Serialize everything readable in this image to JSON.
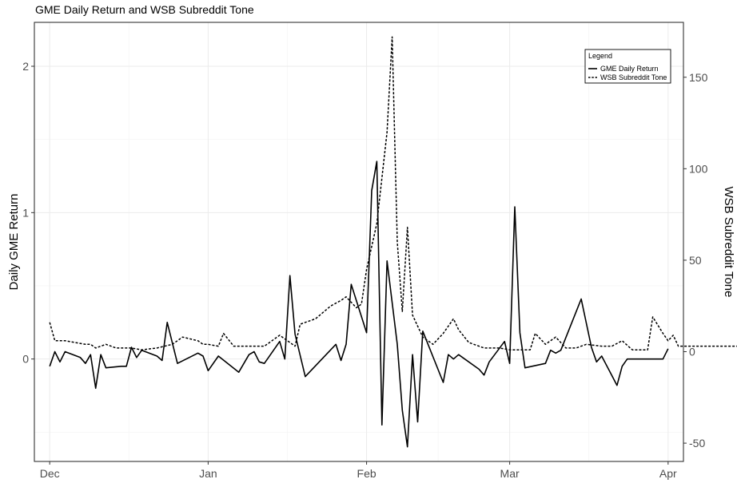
{
  "chart_data": {
    "type": "line",
    "title": "GME Daily Return and WSB Subreddit Tone",
    "xlabel": "",
    "ylabel": "Daily GME Return",
    "y2label": "WSB Subreddit Tone",
    "x_date_range": [
      "2020-11-28",
      "2021-04-04"
    ],
    "x_ticks": [
      {
        "date": "2020-12-01",
        "label": "Dec"
      },
      {
        "date": "2021-01-01",
        "label": "Jan"
      },
      {
        "date": "2021-02-01",
        "label": "Feb"
      },
      {
        "date": "2021-03-01",
        "label": "Mar"
      },
      {
        "date": "2021-04-01",
        "label": "Apr"
      }
    ],
    "ylim": [
      -0.7,
      2.3
    ],
    "y_ticks": [
      0,
      1,
      2
    ],
    "y2lim": [
      -60,
      180
    ],
    "y2_ticks": [
      -50,
      0,
      50,
      100,
      150
    ],
    "grid": true,
    "legend": {
      "title": "Legend",
      "position": "top-right"
    },
    "series": [
      {
        "name": "GME Daily Return",
        "axis": "left",
        "line_style": "solid",
        "color": "#000000",
        "points": [
          [
            "2020-12-01",
            -0.05
          ],
          [
            "2020-12-02",
            0.05
          ],
          [
            "2020-12-03",
            -0.02
          ],
          [
            "2020-12-04",
            0.05
          ],
          [
            "2020-12-07",
            0.01
          ],
          [
            "2020-12-08",
            -0.03
          ],
          [
            "2020-12-09",
            0.03
          ],
          [
            "2020-12-10",
            -0.2
          ],
          [
            "2020-12-11",
            0.03
          ],
          [
            "2020-12-12",
            -0.06
          ],
          [
            "2020-12-15",
            -0.05
          ],
          [
            "2020-12-16",
            -0.05
          ],
          [
            "2020-12-17",
            0.08
          ],
          [
            "2020-12-18",
            0.01
          ],
          [
            "2020-12-19",
            0.06
          ],
          [
            "2020-12-22",
            0.02
          ],
          [
            "2020-12-23",
            -0.01
          ],
          [
            "2020-12-24",
            0.25
          ],
          [
            "2020-12-26",
            -0.03
          ],
          [
            "2020-12-30",
            0.04
          ],
          [
            "2020-12-31",
            0.02
          ],
          [
            "2021-01-01",
            -0.08
          ],
          [
            "2021-01-03",
            0.02
          ],
          [
            "2021-01-07",
            -0.09
          ],
          [
            "2021-01-09",
            0.03
          ],
          [
            "2021-01-10",
            0.05
          ],
          [
            "2021-01-11",
            -0.02
          ],
          [
            "2021-01-12",
            -0.03
          ],
          [
            "2021-01-15",
            0.12
          ],
          [
            "2021-01-16",
            0.0
          ],
          [
            "2021-01-17",
            0.57
          ],
          [
            "2021-01-18",
            0.17
          ],
          [
            "2021-01-20",
            -0.12
          ],
          [
            "2021-01-26",
            0.1
          ],
          [
            "2021-01-27",
            -0.01
          ],
          [
            "2021-01-28",
            0.1
          ],
          [
            "2021-01-29",
            0.51
          ],
          [
            "2021-02-01",
            0.18
          ],
          [
            "2021-02-02",
            1.15
          ],
          [
            "2021-02-03",
            1.35
          ],
          [
            "2021-02-04",
            -0.45
          ],
          [
            "2021-02-05",
            0.67
          ],
          [
            "2021-02-07",
            0.1
          ],
          [
            "2021-02-08",
            -0.35
          ],
          [
            "2021-02-09",
            -0.6
          ],
          [
            "2021-02-10",
            0.03
          ],
          [
            "2021-02-11",
            -0.43
          ],
          [
            "2021-02-12",
            0.19
          ],
          [
            "2021-02-16",
            -0.16
          ],
          [
            "2021-02-17",
            0.03
          ],
          [
            "2021-02-18",
            0.0
          ],
          [
            "2021-02-19",
            0.03
          ],
          [
            "2021-02-23",
            -0.07
          ],
          [
            "2021-02-24",
            -0.11
          ],
          [
            "2021-02-25",
            -0.02
          ],
          [
            "2021-02-28",
            0.12
          ],
          [
            "2021-03-01",
            -0.03
          ],
          [
            "2021-03-02",
            1.04
          ],
          [
            "2021-03-03",
            0.18
          ],
          [
            "2021-03-04",
            -0.06
          ],
          [
            "2021-03-08",
            -0.03
          ],
          [
            "2021-03-09",
            0.06
          ],
          [
            "2021-03-10",
            0.04
          ],
          [
            "2021-03-11",
            0.06
          ],
          [
            "2021-03-15",
            0.41
          ],
          [
            "2021-03-17",
            0.08
          ],
          [
            "2021-03-18",
            -0.02
          ],
          [
            "2021-03-19",
            0.02
          ],
          [
            "2021-03-22",
            -0.18
          ],
          [
            "2021-03-23",
            -0.05
          ],
          [
            "2021-03-24",
            0.0
          ],
          [
            "2021-03-31",
            0.0
          ],
          [
            "2021-04-01",
            0.07
          ]
        ]
      },
      {
        "name": "WSB Subreddit Tone",
        "axis": "right",
        "line_style": "dashed",
        "color": "#000000",
        "points": [
          [
            "2020-12-01",
            16
          ],
          [
            "2020-12-02",
            6
          ],
          [
            "2020-12-04",
            6
          ],
          [
            "2020-12-08",
            4
          ],
          [
            "2020-12-09",
            4
          ],
          [
            "2020-12-10",
            2
          ],
          [
            "2020-12-12",
            4
          ],
          [
            "2020-12-14",
            2
          ],
          [
            "2020-12-17",
            2
          ],
          [
            "2020-12-19",
            1
          ],
          [
            "2020-12-22",
            2
          ],
          [
            "2020-12-25",
            4
          ],
          [
            "2020-12-27",
            8
          ],
          [
            "2020-12-30",
            6
          ],
          [
            "2020-12-31",
            4
          ],
          [
            "2021-01-01",
            4
          ],
          [
            "2021-01-03",
            3
          ],
          [
            "2021-01-04",
            10
          ],
          [
            "2021-01-06",
            3
          ],
          [
            "2021-01-08",
            3
          ],
          [
            "2021-01-12",
            3
          ],
          [
            "2021-01-15",
            9
          ],
          [
            "2021-01-18",
            3
          ],
          [
            "2021-01-19",
            15
          ],
          [
            "2021-01-22",
            18
          ],
          [
            "2021-01-25",
            25
          ],
          [
            "2021-01-27",
            28
          ],
          [
            "2021-01-28",
            30
          ],
          [
            "2021-01-30",
            24
          ],
          [
            "2021-01-31",
            26
          ],
          [
            "2021-02-01",
            45
          ],
          [
            "2021-02-03",
            70
          ],
          [
            "2021-02-05",
            120
          ],
          [
            "2021-02-06",
            172
          ],
          [
            "2021-02-07",
            60
          ],
          [
            "2021-02-08",
            22
          ],
          [
            "2021-02-09",
            68
          ],
          [
            "2021-02-10",
            20
          ],
          [
            "2021-02-12",
            8
          ],
          [
            "2021-02-14",
            4
          ],
          [
            "2021-02-16",
            10
          ],
          [
            "2021-02-18",
            18
          ],
          [
            "2021-02-19",
            12
          ],
          [
            "2021-02-21",
            5
          ],
          [
            "2021-02-24",
            2
          ],
          [
            "2021-02-27",
            2
          ],
          [
            "2021-03-01",
            1
          ],
          [
            "2021-03-02",
            1
          ],
          [
            "2021-03-05",
            1
          ],
          [
            "2021-03-06",
            10
          ],
          [
            "2021-03-08",
            4
          ],
          [
            "2021-03-10",
            8
          ],
          [
            "2021-03-12",
            2
          ],
          [
            "2021-03-14",
            2
          ],
          [
            "2021-03-16",
            4
          ],
          [
            "2021-03-19",
            3
          ],
          [
            "2021-03-21",
            3
          ],
          [
            "2021-03-23",
            6
          ],
          [
            "2021-03-25",
            1
          ],
          [
            "2021-03-26",
            1
          ],
          [
            "2021-03-28",
            1
          ],
          [
            "2021-03-29",
            19
          ],
          [
            "2021-03-31",
            10
          ],
          [
            "2021-04-01",
            6
          ],
          [
            "2021-04-02",
            9
          ],
          [
            "2021-04-03",
            3
          ],
          [
            "2021-04-04",
            3
          ],
          [
            "2021-04-05",
            3
          ],
          [
            "2021-04-09",
            3
          ],
          [
            "2021-04-12",
            3
          ],
          [
            "2021-04-15",
            3
          ],
          [
            "2021-04-20",
            3
          ],
          [
            "2021-04-24",
            3
          ],
          [
            "2021-04-26",
            3
          ],
          [
            "2021-04-28",
            5
          ]
        ]
      }
    ]
  }
}
